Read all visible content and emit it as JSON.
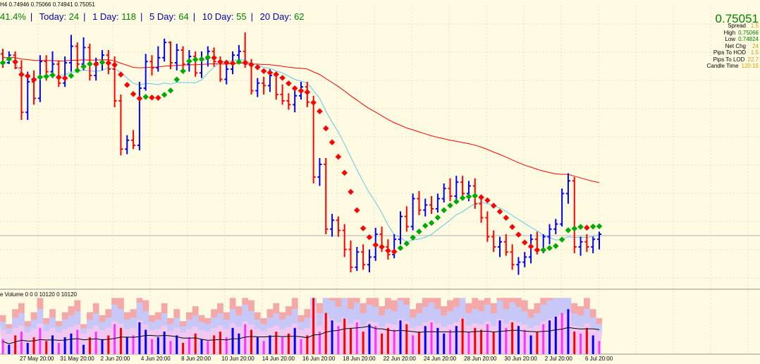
{
  "header": {
    "title": "H4  0.74946 0.75066 0.74941 0.75051"
  },
  "stats": {
    "pct": "41.4%",
    "today_label": "Today:",
    "today_value": "24",
    "day1_label": "1 Day:",
    "day1_value": "118",
    "day5_label": "5 Day:",
    "day5_value": "64",
    "day10_label": "10 Day:",
    "day10_value": "55",
    "day20_label": "20 Day:",
    "day20_value": "62"
  },
  "price_panel": {
    "price": "0.75051",
    "rows": [
      {
        "label": "Spread",
        "value": "1.5"
      },
      {
        "label": "High",
        "value": "0.75066"
      },
      {
        "label": "Low",
        "value": "0.74824"
      },
      {
        "label": "Net Chg",
        "value": "24"
      },
      {
        "label": "Pips To HOD",
        "value": "1.5"
      },
      {
        "label": "Pips To LOD",
        "value": "22.7"
      },
      {
        "label": "Candle Time",
        "value": "120:15"
      }
    ]
  },
  "volume_panel": {
    "label": "e Volume 0 0 0 10120 0 10120"
  },
  "x_axis": {
    "labels": [
      "27 May 20:00",
      "31 May 20:00",
      "2 Jun 20:00",
      "4 Jun 20:00",
      "8 Jun 20:00",
      "10 Jun 20:00",
      "14 Jun 20:00",
      "16 Jun 20:00",
      "18 Jun 20:00",
      "22 Jun 20:00",
      "24 Jun 20:00",
      "28 Jun 20:00",
      "30 Jun 20:00",
      "2 Jul 20:00",
      "6 Jul 20:00"
    ]
  },
  "colors": {
    "background": "#fffbe3",
    "up_bar": "#0000ff",
    "down_bar": "#ff0000",
    "dot_up": "#00aa00",
    "dot_down": "#ff0000",
    "ma_slow": "#ff0000",
    "ma_fast": "#5fc8e8",
    "grid": "#e0dcc8",
    "volume_upper_band": "#f5a8a8",
    "volume_mid_band": "#c8c8f8",
    "volume_low_band": "#f0c8f0"
  },
  "chart_data": {
    "type": "ohlc",
    "symbol_timeframe": "H4",
    "last": {
      "open": 0.74946,
      "high": 0.75066,
      "low": 0.74941,
      "close": 0.75051
    },
    "price_range": [
      0.734,
      0.756
    ],
    "bars": [
      [
        0.7522,
        0.7526,
        0.7511,
        0.7515
      ],
      [
        0.7515,
        0.7524,
        0.7514,
        0.7521
      ],
      [
        0.7521,
        0.7524,
        0.751,
        0.7511
      ],
      [
        0.7511,
        0.7517,
        0.747,
        0.7476
      ],
      [
        0.7476,
        0.7508,
        0.747,
        0.75
      ],
      [
        0.75,
        0.7509,
        0.7482,
        0.7487
      ],
      [
        0.7487,
        0.7521,
        0.7484,
        0.7516
      ],
      [
        0.7516,
        0.7521,
        0.7501,
        0.7508
      ],
      [
        0.7508,
        0.7524,
        0.7503,
        0.7514
      ],
      [
        0.7514,
        0.7517,
        0.7496,
        0.7499
      ],
      [
        0.7499,
        0.752,
        0.7496,
        0.7515
      ],
      [
        0.7515,
        0.7537,
        0.7508,
        0.7528
      ],
      [
        0.7528,
        0.7531,
        0.7508,
        0.7514
      ],
      [
        0.7514,
        0.7535,
        0.7509,
        0.7527
      ],
      [
        0.7527,
        0.753,
        0.7501,
        0.7505
      ],
      [
        0.7505,
        0.7519,
        0.7501,
        0.7515
      ],
      [
        0.7515,
        0.7525,
        0.7509,
        0.7521
      ],
      [
        0.7521,
        0.7525,
        0.7506,
        0.751
      ],
      [
        0.751,
        0.752,
        0.748,
        0.7485
      ],
      [
        0.7485,
        0.749,
        0.7442,
        0.7447
      ],
      [
        0.7447,
        0.7458,
        0.7443,
        0.7454
      ],
      [
        0.7454,
        0.7462,
        0.7447,
        0.745
      ],
      [
        0.745,
        0.75,
        0.7446,
        0.7495
      ],
      [
        0.7495,
        0.7522,
        0.7493,
        0.7516
      ],
      [
        0.7516,
        0.7521,
        0.7505,
        0.7511
      ],
      [
        0.7511,
        0.7528,
        0.7508,
        0.7519
      ],
      [
        0.7519,
        0.7534,
        0.7516,
        0.7531
      ],
      [
        0.7531,
        0.7532,
        0.751,
        0.7515
      ],
      [
        0.7515,
        0.753,
        0.7509,
        0.7525
      ],
      [
        0.7525,
        0.7528,
        0.751,
        0.7514
      ],
      [
        0.7514,
        0.7525,
        0.7508,
        0.752
      ],
      [
        0.752,
        0.7524,
        0.7504,
        0.7507
      ],
      [
        0.7507,
        0.7524,
        0.7503,
        0.7518
      ],
      [
        0.7518,
        0.7528,
        0.7512,
        0.7524
      ],
      [
        0.7524,
        0.7527,
        0.7512,
        0.7516
      ],
      [
        0.7516,
        0.752,
        0.75,
        0.7502
      ],
      [
        0.7502,
        0.7515,
        0.7498,
        0.751
      ],
      [
        0.751,
        0.7524,
        0.7506,
        0.7521
      ],
      [
        0.7521,
        0.7529,
        0.7515,
        0.7524
      ],
      [
        0.7524,
        0.7539,
        0.7511,
        0.7514
      ],
      [
        0.7514,
        0.7518,
        0.749,
        0.7493
      ],
      [
        0.7493,
        0.7503,
        0.7488,
        0.7499
      ],
      [
        0.7499,
        0.7504,
        0.749,
        0.7497
      ],
      [
        0.7497,
        0.751,
        0.7492,
        0.7505
      ],
      [
        0.7505,
        0.7508,
        0.7486,
        0.749
      ],
      [
        0.749,
        0.7498,
        0.7482,
        0.7485
      ],
      [
        0.7485,
        0.7491,
        0.7478,
        0.7482
      ],
      [
        0.7482,
        0.7494,
        0.7476,
        0.7489
      ],
      [
        0.7489,
        0.75,
        0.7486,
        0.7496
      ],
      [
        0.7496,
        0.75,
        0.748,
        0.7484
      ],
      [
        0.7484,
        0.7489,
        0.742,
        0.7425
      ],
      [
        0.7425,
        0.744,
        0.7418,
        0.7435
      ],
      [
        0.7435,
        0.744,
        0.738,
        0.7384
      ],
      [
        0.7384,
        0.7396,
        0.7378,
        0.7391
      ],
      [
        0.7391,
        0.7394,
        0.7378,
        0.7383
      ],
      [
        0.7383,
        0.7388,
        0.7362,
        0.7368
      ],
      [
        0.7368,
        0.7375,
        0.735,
        0.7354
      ],
      [
        0.7354,
        0.737,
        0.7351,
        0.7366
      ],
      [
        0.7366,
        0.7372,
        0.7352,
        0.7356
      ],
      [
        0.7356,
        0.7368,
        0.735,
        0.7362
      ],
      [
        0.7362,
        0.7385,
        0.7359,
        0.738
      ],
      [
        0.738,
        0.7386,
        0.7366,
        0.737
      ],
      [
        0.737,
        0.7376,
        0.736,
        0.7364
      ],
      [
        0.7364,
        0.738,
        0.7361,
        0.7376
      ],
      [
        0.7376,
        0.7398,
        0.7372,
        0.7394
      ],
      [
        0.7394,
        0.7402,
        0.7382,
        0.7386
      ],
      [
        0.7386,
        0.7412,
        0.7383,
        0.7408
      ],
      [
        0.7408,
        0.7414,
        0.7395,
        0.7399
      ],
      [
        0.7399,
        0.7408,
        0.7394,
        0.7403
      ],
      [
        0.7403,
        0.741,
        0.7396,
        0.74
      ],
      [
        0.74,
        0.7412,
        0.7397,
        0.7408
      ],
      [
        0.7408,
        0.742,
        0.7405,
        0.7416
      ],
      [
        0.7416,
        0.7424,
        0.7406,
        0.741
      ],
      [
        0.741,
        0.7426,
        0.7407,
        0.7421
      ],
      [
        0.7421,
        0.7426,
        0.7408,
        0.7412
      ],
      [
        0.7412,
        0.7422,
        0.7406,
        0.7418
      ],
      [
        0.7418,
        0.7424,
        0.74,
        0.7404
      ],
      [
        0.7404,
        0.741,
        0.7389,
        0.7393
      ],
      [
        0.7393,
        0.7398,
        0.7374,
        0.7378
      ],
      [
        0.7378,
        0.7383,
        0.7366,
        0.737
      ],
      [
        0.737,
        0.7378,
        0.7362,
        0.7374
      ],
      [
        0.7374,
        0.738,
        0.7363,
        0.7366
      ],
      [
        0.7366,
        0.7372,
        0.7352,
        0.7356
      ],
      [
        0.7356,
        0.7362,
        0.7348,
        0.7358
      ],
      [
        0.7358,
        0.7366,
        0.7354,
        0.7362
      ],
      [
        0.7362,
        0.738,
        0.7357,
        0.7376
      ],
      [
        0.7376,
        0.7382,
        0.7364,
        0.7368
      ],
      [
        0.7368,
        0.738,
        0.7365,
        0.7378
      ],
      [
        0.7378,
        0.7388,
        0.7372,
        0.7384
      ],
      [
        0.7384,
        0.7392,
        0.738,
        0.7388
      ],
      [
        0.7388,
        0.7416,
        0.7386,
        0.7412
      ],
      [
        0.7412,
        0.7428,
        0.7404,
        0.7422
      ],
      [
        0.7422,
        0.7425,
        0.7365,
        0.737
      ],
      [
        0.737,
        0.7378,
        0.7363,
        0.7374
      ],
      [
        0.7374,
        0.738,
        0.7366,
        0.737
      ],
      [
        0.737,
        0.7378,
        0.7365,
        0.7376
      ],
      [
        0.7376,
        0.7382,
        0.7368,
        0.738
      ]
    ],
    "volume": [
      8,
      5,
      10,
      12,
      6,
      9,
      14,
      7,
      10,
      6,
      9,
      11,
      13,
      5,
      9,
      12,
      8,
      10,
      16,
      14,
      9,
      10,
      17,
      13,
      8,
      9,
      12,
      7,
      10,
      6,
      9,
      11,
      8,
      7,
      10,
      12,
      9,
      14,
      11,
      16,
      13,
      9,
      7,
      10,
      12,
      9,
      11,
      14,
      8,
      10,
      30,
      12,
      22,
      18,
      15,
      19,
      14,
      17,
      12,
      16,
      15,
      11,
      14,
      13,
      18,
      16,
      10,
      12,
      15,
      17,
      14,
      11,
      13,
      15,
      19,
      12,
      14,
      13,
      16,
      12,
      18,
      14,
      17,
      15,
      13,
      10,
      12,
      16,
      18,
      20,
      22,
      24,
      12,
      11,
      14,
      10,
      7
    ]
  }
}
